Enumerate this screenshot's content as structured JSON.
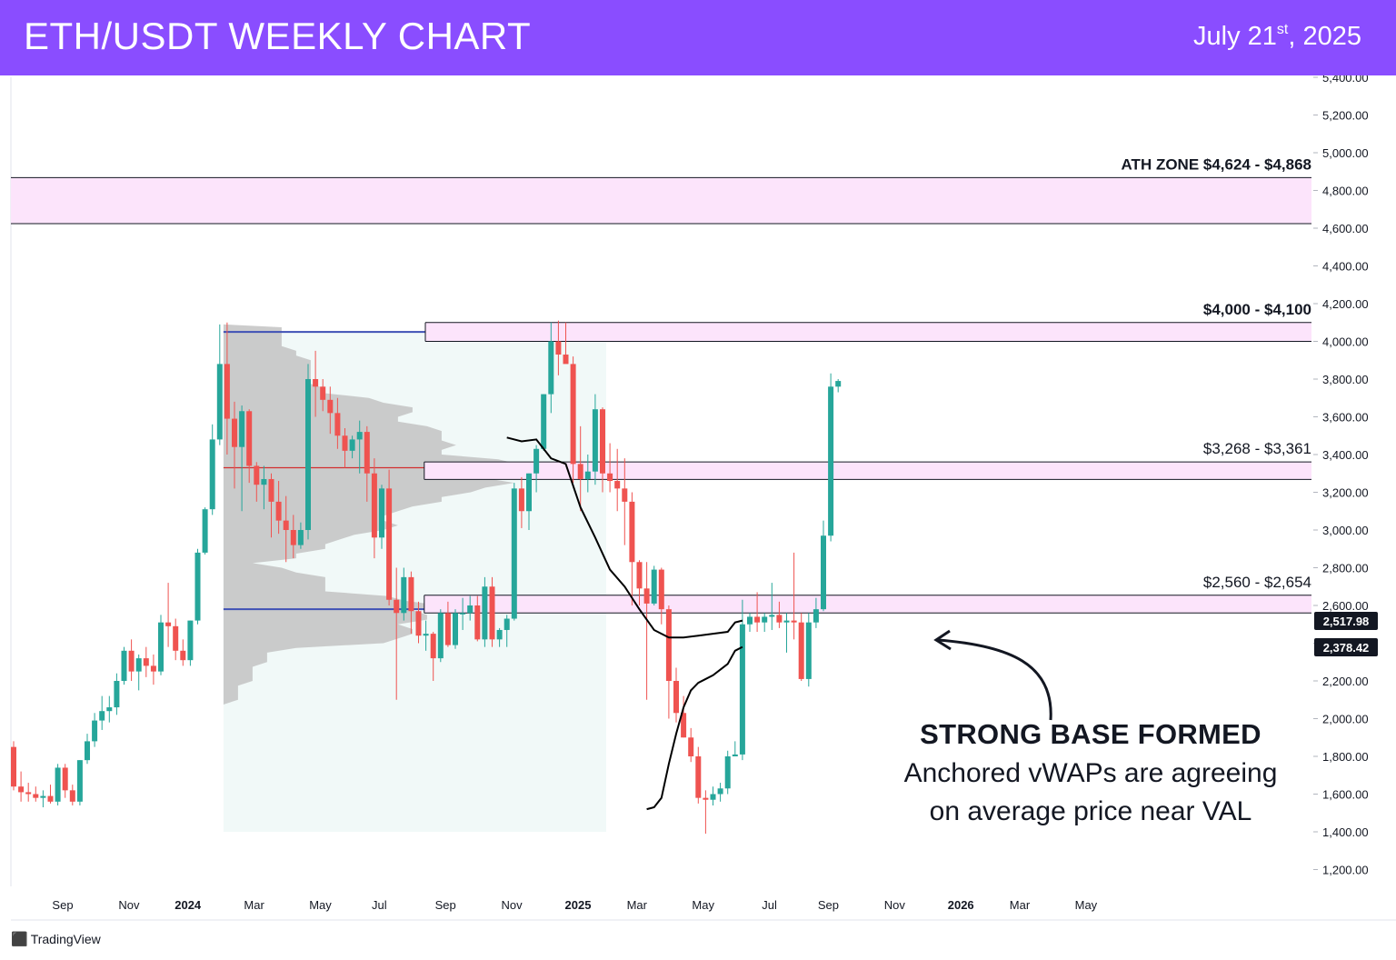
{
  "header": {
    "title": "ETH/USDT WEEKLY CHART",
    "date_main": "July 21",
    "date_sup": "st",
    "date_tail": ", 2025",
    "bg_color": "#8a4dff"
  },
  "watermark": {
    "brand": "TradingView",
    "icon": "tradingview-logo-icon"
  },
  "annotation": {
    "title": "STRONG BASE FORMED",
    "line1": "Anchored vWAPs are agreeing",
    "line2": "on average price near VAL"
  },
  "chart_data": {
    "type": "candlestick",
    "title": "ETH/USDT WEEKLY CHART",
    "ylim": [
      1100,
      5450
    ],
    "y_ticks": [
      "1,200.00",
      "1,400.00",
      "1,600.00",
      "1,800.00",
      "2,000.00",
      "2,200.00",
      "2,400.00",
      "2,600.00",
      "2,800.00",
      "3,000.00",
      "3,200.00",
      "3,400.00",
      "3,600.00",
      "3,800.00",
      "4,000.00",
      "4,200.00",
      "4,400.00",
      "4,600.00",
      "4,800.00",
      "5,000.00",
      "5,200.00",
      "5,400.00"
    ],
    "x_ticks": [
      {
        "label": "Sep",
        "week": 0,
        "bold": false
      },
      {
        "label": "Nov",
        "week": 9,
        "bold": false
      },
      {
        "label": "2024",
        "week": 17,
        "bold": true
      },
      {
        "label": "Mar",
        "week": 26,
        "bold": false
      },
      {
        "label": "May",
        "week": 35,
        "bold": false
      },
      {
        "label": "Jul",
        "week": 43,
        "bold": false
      },
      {
        "label": "Sep",
        "week": 52,
        "bold": false
      },
      {
        "label": "Nov",
        "week": 61,
        "bold": false
      },
      {
        "label": "2025",
        "week": 70,
        "bold": true
      },
      {
        "label": "Mar",
        "week": 78,
        "bold": false
      },
      {
        "label": "May",
        "week": 87,
        "bold": false
      },
      {
        "label": "Jul",
        "week": 96,
        "bold": false
      },
      {
        "label": "Sep",
        "week": 104,
        "bold": false
      },
      {
        "label": "Nov",
        "week": 113,
        "bold": false
      },
      {
        "label": "2026",
        "week": 122,
        "bold": true
      },
      {
        "label": "Mar",
        "week": 130,
        "bold": false
      },
      {
        "label": "May",
        "week": 139,
        "bold": false
      }
    ],
    "candles": [
      [
        1850,
        1880,
        1620,
        1640
      ],
      [
        1640,
        1720,
        1560,
        1610
      ],
      [
        1610,
        1660,
        1560,
        1600
      ],
      [
        1600,
        1640,
        1560,
        1580
      ],
      [
        1580,
        1620,
        1530,
        1590
      ],
      [
        1590,
        1650,
        1550,
        1560
      ],
      [
        1560,
        1760,
        1540,
        1740
      ],
      [
        1740,
        1760,
        1580,
        1620
      ],
      [
        1620,
        1650,
        1540,
        1560
      ],
      [
        1560,
        1780,
        1540,
        1780
      ],
      [
        1780,
        1920,
        1760,
        1880
      ],
      [
        1880,
        2030,
        1850,
        1990
      ],
      [
        1990,
        2120,
        1940,
        2040
      ],
      [
        2040,
        2120,
        1980,
        2060
      ],
      [
        2060,
        2240,
        2020,
        2200
      ],
      [
        2200,
        2380,
        2180,
        2360
      ],
      [
        2360,
        2420,
        2200,
        2250
      ],
      [
        2250,
        2340,
        2150,
        2320
      ],
      [
        2320,
        2380,
        2220,
        2280
      ],
      [
        2280,
        2340,
        2180,
        2250
      ],
      [
        2250,
        2550,
        2230,
        2510
      ],
      [
        2510,
        2720,
        2380,
        2490
      ],
      [
        2490,
        2530,
        2310,
        2360
      ],
      [
        2360,
        2420,
        2280,
        2310
      ],
      [
        2310,
        2520,
        2280,
        2520
      ],
      [
        2520,
        2900,
        2500,
        2880
      ],
      [
        2880,
        3120,
        2870,
        3110
      ],
      [
        3110,
        3560,
        3080,
        3480
      ],
      [
        3480,
        4090,
        3450,
        3880
      ],
      [
        3880,
        4100,
        3400,
        3590
      ],
      [
        3590,
        3680,
        3220,
        3440
      ],
      [
        3440,
        3660,
        3100,
        3630
      ],
      [
        3630,
        3640,
        3250,
        3340
      ],
      [
        3340,
        3360,
        3150,
        3240
      ],
      [
        3240,
        3340,
        3110,
        3270
      ],
      [
        3270,
        3300,
        2960,
        3150
      ],
      [
        3150,
        3260,
        2980,
        3050
      ],
      [
        3050,
        3180,
        2830,
        3000
      ],
      [
        3000,
        3080,
        2850,
        2920
      ],
      [
        2920,
        3040,
        2900,
        3000
      ],
      [
        3000,
        3880,
        2950,
        3800
      ],
      [
        3800,
        3950,
        3600,
        3760
      ],
      [
        3760,
        3800,
        3630,
        3690
      ],
      [
        3690,
        3760,
        3510,
        3620
      ],
      [
        3620,
        3700,
        3430,
        3500
      ],
      [
        3500,
        3540,
        3330,
        3420
      ],
      [
        3420,
        3500,
        3380,
        3480
      ],
      [
        3480,
        3580,
        3300,
        3520
      ],
      [
        3520,
        3550,
        3150,
        3300
      ],
      [
        3300,
        3380,
        2850,
        2960
      ],
      [
        2960,
        3240,
        2900,
        3220
      ],
      [
        3220,
        3320,
        2600,
        2630
      ],
      [
        2630,
        2800,
        2100,
        2560
      ],
      [
        2560,
        2800,
        2520,
        2750
      ],
      [
        2750,
        2780,
        2450,
        2570
      ],
      [
        2570,
        2620,
        2400,
        2440
      ],
      [
        2440,
        2520,
        2360,
        2450
      ],
      [
        2450,
        2460,
        2200,
        2320
      ],
      [
        2320,
        2580,
        2300,
        2560
      ],
      [
        2560,
        2620,
        2380,
        2390
      ],
      [
        2390,
        2580,
        2370,
        2560
      ],
      [
        2560,
        2640,
        2470,
        2560
      ],
      [
        2560,
        2650,
        2520,
        2600
      ],
      [
        2600,
        2650,
        2410,
        2420
      ],
      [
        2420,
        2750,
        2380,
        2700
      ],
      [
        2700,
        2750,
        2380,
        2420
      ],
      [
        2420,
        2480,
        2380,
        2470
      ],
      [
        2470,
        2550,
        2380,
        2530
      ],
      [
        2530,
        3250,
        2520,
        3220
      ],
      [
        3220,
        3280,
        3010,
        3100
      ],
      [
        3100,
        3300,
        3000,
        3300
      ],
      [
        3300,
        3450,
        3200,
        3430
      ],
      [
        3430,
        3720,
        3420,
        3720
      ],
      [
        3720,
        4100,
        3620,
        4000
      ],
      [
        4000,
        4110,
        3820,
        3930
      ],
      [
        3930,
        4100,
        3900,
        3880
      ],
      [
        3880,
        3920,
        3250,
        3350
      ],
      [
        3350,
        3550,
        3100,
        3270
      ],
      [
        3270,
        3400,
        3200,
        3310
      ],
      [
        3310,
        3720,
        3240,
        3640
      ],
      [
        3640,
        3650,
        3200,
        3300
      ],
      [
        3300,
        3460,
        3200,
        3260
      ],
      [
        3260,
        3430,
        3100,
        3220
      ],
      [
        3220,
        3380,
        2920,
        3150
      ],
      [
        3150,
        3200,
        2600,
        2830
      ],
      [
        2830,
        2840,
        2600,
        2690
      ],
      [
        2690,
        2830,
        2100,
        2610
      ],
      [
        2610,
        2810,
        2600,
        2790
      ],
      [
        2790,
        2800,
        2500,
        2580
      ],
      [
        2580,
        2600,
        2000,
        2200
      ],
      [
        2200,
        2270,
        1980,
        2030
      ],
      [
        2030,
        2120,
        1900,
        1900
      ],
      [
        1900,
        1950,
        1770,
        1800
      ],
      [
        1800,
        1850,
        1550,
        1580
      ],
      [
        1580,
        1620,
        1390,
        1570
      ],
      [
        1570,
        1640,
        1540,
        1600
      ],
      [
        1600,
        1660,
        1560,
        1630
      ],
      [
        1630,
        1830,
        1600,
        1800
      ],
      [
        1800,
        1880,
        1800,
        1810
      ],
      [
        1810,
        2630,
        1780,
        2500
      ],
      [
        2500,
        2560,
        2460,
        2540
      ],
      [
        2540,
        2670,
        2460,
        2510
      ],
      [
        2510,
        2560,
        2460,
        2540
      ],
      [
        2540,
        2720,
        2470,
        2550
      ],
      [
        2550,
        2620,
        2480,
        2510
      ],
      [
        2510,
        2560,
        2350,
        2520
      ],
      [
        2520,
        2880,
        2420,
        2510
      ],
      [
        2510,
        2560,
        2200,
        2210
      ],
      [
        2210,
        2560,
        2170,
        2510
      ],
      [
        2510,
        2640,
        2480,
        2580
      ],
      [
        2580,
        3050,
        2570,
        2970
      ],
      [
        2970,
        3830,
        2940,
        3760
      ],
      [
        3760,
        3800,
        3730,
        3790
      ]
    ],
    "levels": [
      {
        "label": "ATH ZONE $4,624 - $4,868",
        "low": 4624,
        "high": 4868
      },
      {
        "label": "$4,000 - $4,100",
        "low": 4000,
        "high": 4100
      },
      {
        "label": "$3,268 - $3,361",
        "low": 3268,
        "high": 3361
      },
      {
        "label": "$2,560 - $2,654",
        "low": 2560,
        "high": 2654
      }
    ],
    "price_labels": [
      {
        "label": "2,517.98",
        "value": 2517.98
      },
      {
        "label": "2,378.42",
        "value": 2378.42
      }
    ],
    "volume_profile": {
      "from_week": 29,
      "to_week": 80,
      "low": 1400,
      "high": 4090,
      "vah": 4050,
      "val": 2580,
      "poc": 3330
    },
    "vwap_1": [
      [
        67,
        3490
      ],
      [
        69,
        3470
      ],
      [
        71,
        3480
      ],
      [
        73,
        3380
      ],
      [
        75,
        3350
      ],
      [
        77,
        3120
      ],
      [
        79,
        2960
      ],
      [
        81,
        2790
      ],
      [
        83,
        2700
      ],
      [
        85,
        2580
      ],
      [
        87,
        2470
      ],
      [
        89,
        2430
      ],
      [
        91,
        2430
      ],
      [
        93,
        2440
      ],
      [
        95,
        2450
      ],
      [
        97,
        2460
      ],
      [
        98,
        2510
      ],
      [
        99,
        2520
      ]
    ],
    "vwap_2": [
      [
        86,
        1520
      ],
      [
        87,
        1530
      ],
      [
        88,
        1580
      ],
      [
        89,
        1760
      ],
      [
        90,
        1920
      ],
      [
        91,
        2060
      ],
      [
        92,
        2150
      ],
      [
        93,
        2190
      ],
      [
        94,
        2210
      ],
      [
        95,
        2230
      ],
      [
        96,
        2260
      ],
      [
        97,
        2290
      ],
      [
        98,
        2360
      ],
      [
        99,
        2380
      ]
    ],
    "colors": {
      "up": "#26a69a",
      "down": "#ef5350",
      "zone_fill": "#fce4fb",
      "profile": "#c3c3c3",
      "poc": "#d32f2f",
      "value_edge": "#3f51b5",
      "vwap": "#000000"
    }
  }
}
